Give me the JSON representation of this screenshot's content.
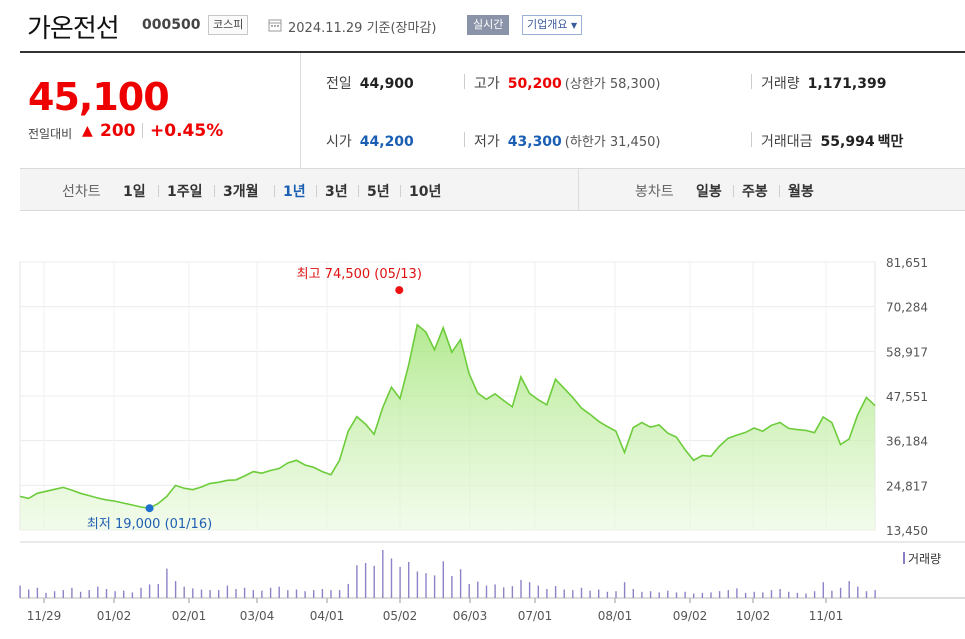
{
  "header": {
    "stock_name": "가온전선",
    "stock_code": "000500",
    "market_badge": "코스피",
    "date_text": "2024.11.29 기준(장마감)",
    "realtime_badge": "실시간",
    "corp_button": "기업개요"
  },
  "price": {
    "current": "45,100",
    "change_label": "전일대비",
    "change_arrow": "▲",
    "change_value": "200",
    "change_pct": "+0.45%"
  },
  "stats": {
    "prev_close_label": "전일",
    "prev_close": "44,900",
    "high_label": "고가",
    "high": "50,200",
    "upper_limit": "(상한가 58,300)",
    "volume_label": "거래량",
    "volume": "1,171,399",
    "open_label": "시가",
    "open": "44,200",
    "low_label": "저가",
    "low": "43,300",
    "lower_limit": "(하한가 31,450)",
    "amount_label": "거래대금",
    "amount": "55,994",
    "amount_unit": "백만"
  },
  "period_bar": {
    "line_label": "선차트",
    "periods": [
      "1일",
      "1주일",
      "3개월",
      "1년",
      "3년",
      "5년",
      "10년"
    ],
    "selected": "1년",
    "candle_label": "봉차트",
    "candles": [
      "일봉",
      "주봉",
      "월봉"
    ]
  },
  "chart_data": {
    "type": "area",
    "y_ticks": [
      "81,651",
      "70,284",
      "58,917",
      "47,551",
      "36,184",
      "24,817",
      "13,450"
    ],
    "ylim": [
      13450,
      81651
    ],
    "x_ticks": [
      "11/29",
      "01/02",
      "02/01",
      "03/04",
      "04/01",
      "05/02",
      "06/03",
      "07/01",
      "08/01",
      "09/02",
      "10/02",
      "11/01"
    ],
    "high_annotation": "최고 74,500 (05/13)",
    "low_annotation": "최저 19,000 (01/16)",
    "high_value": 74500,
    "low_value": 19000,
    "volume_label": "거래량",
    "series": [
      {
        "values": [
          22000,
          21500,
          22800,
          23300,
          23800,
          24300,
          23600,
          22800,
          22200,
          21600,
          21100,
          20800,
          20300,
          19800,
          19300,
          19000,
          20200,
          22000,
          24800,
          24100,
          23700,
          24400,
          25300,
          25600,
          26100,
          26200,
          27200,
          28300,
          27900,
          28600,
          29100,
          30500,
          31200,
          30000,
          29400,
          28300,
          27500,
          31200,
          38600,
          42300,
          40400,
          37800,
          44600,
          49800,
          46900,
          55400,
          65700,
          63800,
          59300,
          64900,
          58700,
          61900,
          53200,
          48300,
          46700,
          48100,
          46400,
          44800,
          52400,
          48200,
          46600,
          45300,
          51800,
          49500,
          47200,
          44500,
          42900,
          41100,
          39800,
          38600,
          33200,
          39500,
          40800,
          39600,
          40200,
          38100,
          37100,
          33900,
          31200,
          32400,
          32200,
          34800,
          36800,
          37600,
          38300,
          39400,
          38600,
          40100,
          40800,
          39300,
          39000,
          38800,
          38200,
          42200,
          40800,
          35200,
          36600,
          42800,
          47200,
          45100
        ]
      },
      {
        "values": [
          22,
          15,
          18,
          9,
          12,
          14,
          18,
          11,
          14,
          20,
          16,
          12,
          13,
          10,
          18,
          24,
          25,
          52,
          30,
          20,
          17,
          15,
          14,
          14,
          22,
          16,
          18,
          14,
          13,
          18,
          20,
          14,
          15,
          12,
          14,
          16,
          14,
          14,
          25,
          58,
          62,
          57,
          85,
          70,
          55,
          64,
          47,
          44,
          40,
          65,
          39,
          51,
          25,
          29,
          22,
          24,
          19,
          21,
          32,
          28,
          22,
          16,
          21,
          15,
          14,
          18,
          13,
          15,
          11,
          12,
          28,
          16,
          11,
          12,
          10,
          13,
          10,
          11,
          8,
          9,
          10,
          12,
          14,
          17,
          9,
          11,
          10,
          14,
          16,
          11,
          9,
          8,
          12,
          28,
          13,
          18,
          30,
          20,
          12,
          14
        ]
      }
    ]
  }
}
